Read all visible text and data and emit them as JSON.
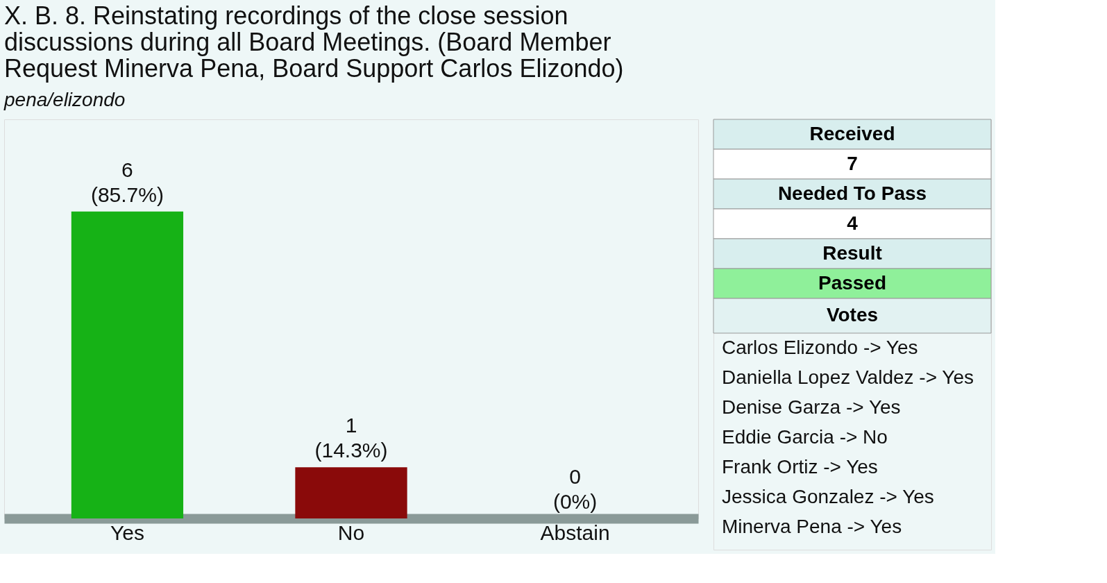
{
  "chart_data": [
    {
      "type": "bar",
      "title": "X. B. 8. Reinstating recordings of the close session discussions during all Board Meetings.  (Board Member Request Minerva Pena, Board Support Carlos Elizondo)",
      "subtitle": "pena/elizondo",
      "categories": [
        "Yes",
        "No",
        "Abstain"
      ],
      "values": [
        6,
        1,
        0
      ],
      "colors": [
        "#16b216",
        "#8a0a0a",
        "#c81010"
      ],
      "value_labels": [
        "6\n(85.7%)",
        "1\n(14.3%)",
        "0\n(0%)"
      ],
      "grid": false,
      "legend": false
    },
    {
      "type": "other",
      "annotations": [
        "Received",
        "7",
        "Needed To Pass",
        "4",
        "Result",
        "Passed",
        "Votes",
        "Carlos  Elizondo -> Yes",
        "Daniella Lopez Valdez -> Yes",
        "Denise Garza -> Yes",
        "Eddie Garcia -> No",
        "Frank  Ortiz -> Yes",
        "Jessica Gonzalez -> Yes",
        "Minerva Pena -> Yes"
      ]
    }
  ]
}
